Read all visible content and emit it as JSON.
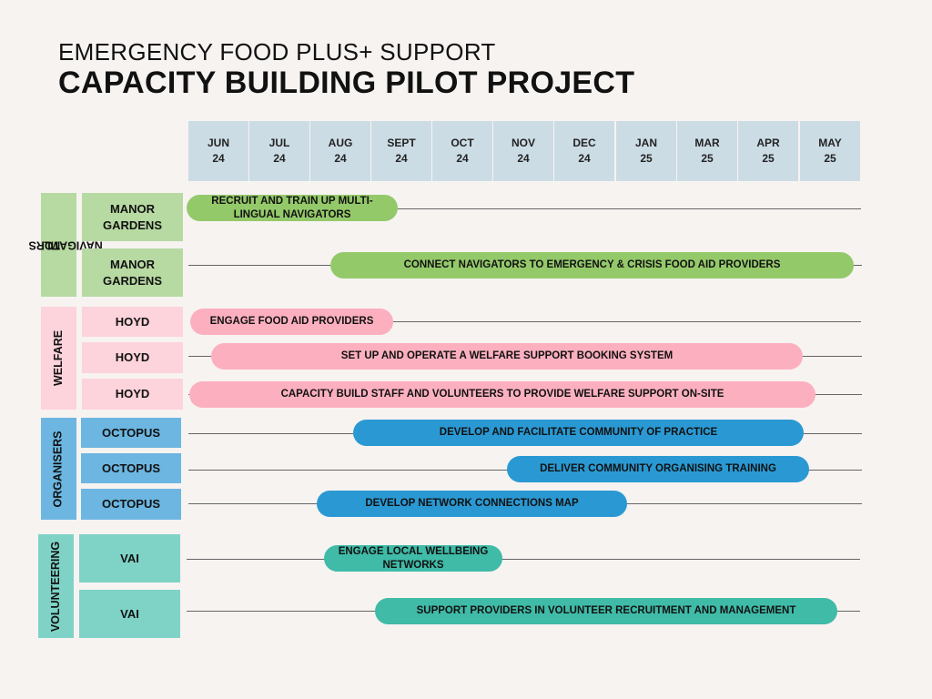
{
  "title_line1": "EMERGENCY FOOD PLUS+ SUPPORT",
  "title_line2": "CAPACITY BUILDING PILOT PROJECT",
  "months": [
    {
      "m": "JUN",
      "y": "24"
    },
    {
      "m": "JUL",
      "y": "24"
    },
    {
      "m": "AUG",
      "y": "24"
    },
    {
      "m": "SEPT",
      "y": "24"
    },
    {
      "m": "OCT",
      "y": "24"
    },
    {
      "m": "NOV",
      "y": "24"
    },
    {
      "m": "DEC",
      "y": "24"
    },
    {
      "m": "JAN",
      "y": "25"
    },
    {
      "m": "MAR",
      "y": "25"
    },
    {
      "m": "APR",
      "y": "25"
    },
    {
      "m": "MAY",
      "y": "25"
    }
  ],
  "groups": [
    {
      "label_line1": "ML",
      "label_line2": "NAVIGATORS",
      "color": "#b7d9a2",
      "bar_color": "#94c96a"
    },
    {
      "label": "WELFARE",
      "color": "#fdd3dc",
      "bar_color": "#fcb0bf"
    },
    {
      "label": "ORGANISERS",
      "color": "#6cb6e1",
      "bar_color": "#2a99d3"
    },
    {
      "label": "VOLUNTEERING",
      "color": "#7fd3c6",
      "bar_color": "#3fbba8"
    }
  ],
  "tasks": [
    {
      "org": "MANOR GARDENS",
      "task": "RECRUIT AND TRAIN UP MULTI-LINGUAL NAVIGATORS"
    },
    {
      "org": "MANOR GARDENS",
      "task": "CONNECT NAVIGATORS TO EMERGENCY & CRISIS FOOD AID PROVIDERS"
    },
    {
      "org": "HOYD",
      "task": "ENGAGE FOOD AID PROVIDERS"
    },
    {
      "org": "HOYD",
      "task": "SET UP AND OPERATE A WELFARE SUPPORT BOOKING SYSTEM"
    },
    {
      "org": "HOYD",
      "task": "CAPACITY BUILD STAFF AND VOLUNTEERS TO PROVIDE WELFARE SUPPORT ON-SITE"
    },
    {
      "org": "OCTOPUS",
      "task": "DEVELOP AND FACILITATE COMMUNITY OF PRACTICE"
    },
    {
      "org": "OCTOPUS",
      "task": "DELIVER COMMUNITY ORGANISING TRAINING"
    },
    {
      "org": "OCTOPUS",
      "task": "DEVELOP NETWORK CONNECTIONS MAP"
    },
    {
      "org": "VAI",
      "task": "ENGAGE LOCAL WELLBEING NETWORKS"
    },
    {
      "org": "VAI",
      "task": "SUPPORT PROVIDERS IN VOLUNTEER RECRUITMENT AND MANAGEMENT"
    }
  ]
}
